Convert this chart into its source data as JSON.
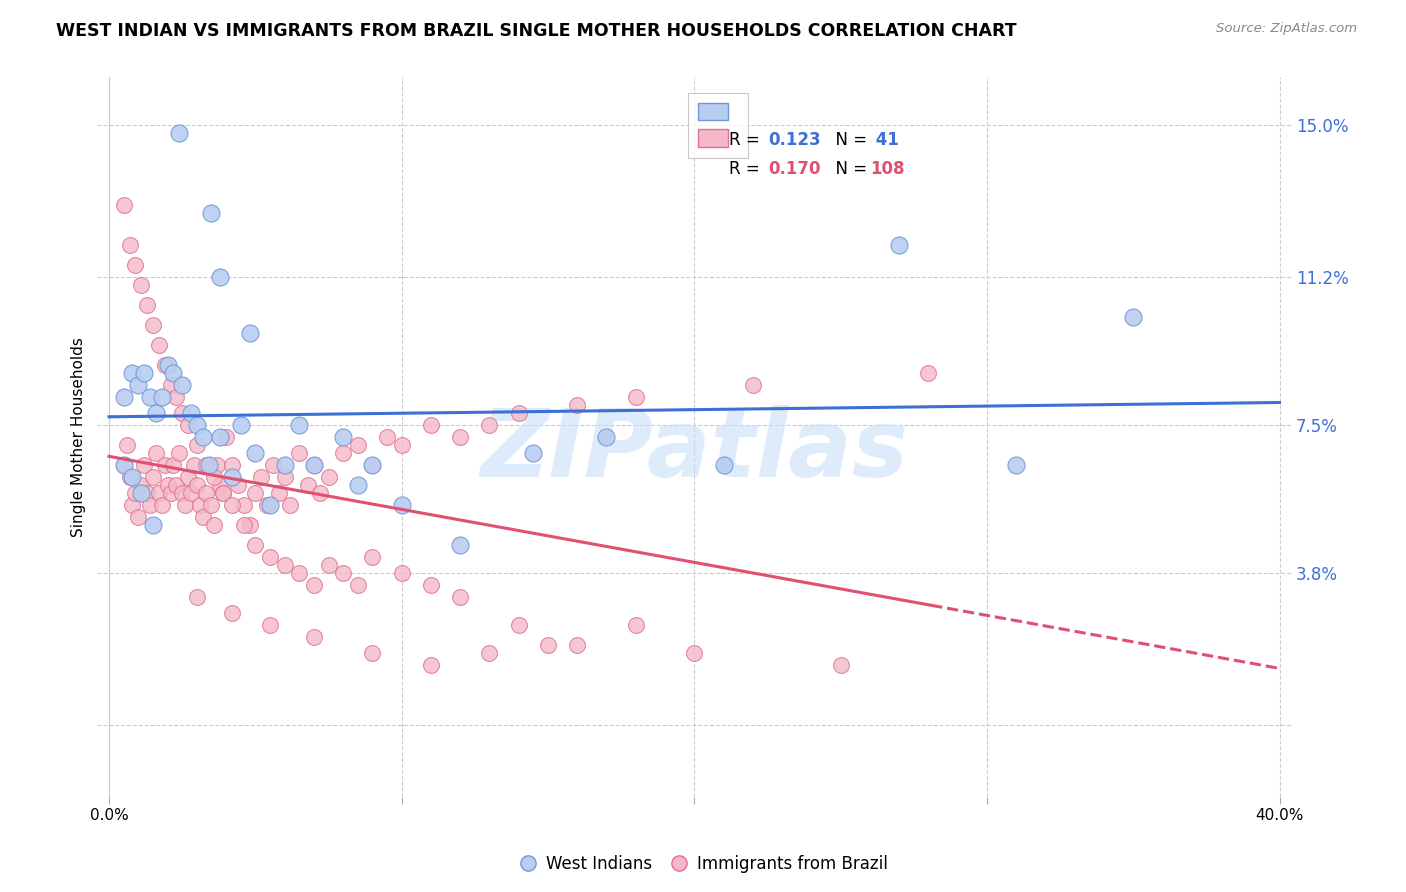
{
  "title": "WEST INDIAN VS IMMIGRANTS FROM BRAZIL SINGLE MOTHER HOUSEHOLDS CORRELATION CHART",
  "source": "Source: ZipAtlas.com",
  "ylabel": "Single Mother Households",
  "ytick_vals": [
    0.0,
    0.038,
    0.075,
    0.112,
    0.15
  ],
  "ytick_labels": [
    "",
    "3.8%",
    "7.5%",
    "11.2%",
    "15.0%"
  ],
  "xtick_vals": [
    0.0,
    0.1,
    0.2,
    0.3,
    0.4
  ],
  "xlim": [
    -0.004,
    0.404
  ],
  "ylim": [
    -0.018,
    0.162
  ],
  "west_indian_R": 0.123,
  "west_indian_N": 41,
  "brazil_R": 0.17,
  "brazil_N": 108,
  "line_color_blue": "#3d6fd4",
  "line_color_pink": "#e05070",
  "dot_color_blue": "#b8cef0",
  "dot_color_pink": "#f5b8c8",
  "dot_edge_blue": "#7098d8",
  "dot_edge_pink": "#e07090",
  "watermark_text": "ZIPatlas",
  "watermark_color": "#c8dff8",
  "grid_color": "#cccccc",
  "legend_text_color_blue": "#3d6fd4",
  "legend_text_color_pink": "#e05070",
  "ytick_color": "#3d6fd4",
  "west_indian_x": [
    0.024,
    0.035,
    0.038,
    0.048,
    0.005,
    0.008,
    0.01,
    0.012,
    0.014,
    0.016,
    0.018,
    0.02,
    0.022,
    0.025,
    0.028,
    0.03,
    0.032,
    0.034,
    0.038,
    0.042,
    0.045,
    0.05,
    0.055,
    0.06,
    0.065,
    0.07,
    0.08,
    0.085,
    0.09,
    0.1,
    0.12,
    0.145,
    0.17,
    0.21,
    0.27,
    0.31,
    0.35,
    0.005,
    0.008,
    0.011,
    0.015
  ],
  "west_indian_y": [
    0.148,
    0.128,
    0.112,
    0.098,
    0.082,
    0.088,
    0.085,
    0.088,
    0.082,
    0.078,
    0.082,
    0.09,
    0.088,
    0.085,
    0.078,
    0.075,
    0.072,
    0.065,
    0.072,
    0.062,
    0.075,
    0.068,
    0.055,
    0.065,
    0.075,
    0.065,
    0.072,
    0.06,
    0.065,
    0.055,
    0.045,
    0.068,
    0.072,
    0.065,
    0.12,
    0.065,
    0.102,
    0.065,
    0.062,
    0.058,
    0.05
  ],
  "brazil_x": [
    0.005,
    0.006,
    0.007,
    0.008,
    0.009,
    0.01,
    0.011,
    0.012,
    0.013,
    0.014,
    0.015,
    0.016,
    0.017,
    0.018,
    0.019,
    0.02,
    0.021,
    0.022,
    0.023,
    0.024,
    0.025,
    0.026,
    0.027,
    0.028,
    0.029,
    0.03,
    0.031,
    0.032,
    0.033,
    0.034,
    0.035,
    0.036,
    0.037,
    0.038,
    0.039,
    0.04,
    0.042,
    0.044,
    0.046,
    0.048,
    0.05,
    0.052,
    0.054,
    0.056,
    0.058,
    0.06,
    0.062,
    0.065,
    0.068,
    0.07,
    0.072,
    0.075,
    0.08,
    0.085,
    0.09,
    0.095,
    0.1,
    0.11,
    0.12,
    0.13,
    0.14,
    0.16,
    0.18,
    0.22,
    0.28,
    0.005,
    0.007,
    0.009,
    0.011,
    0.013,
    0.015,
    0.017,
    0.019,
    0.021,
    0.023,
    0.025,
    0.027,
    0.03,
    0.033,
    0.036,
    0.039,
    0.042,
    0.046,
    0.05,
    0.055,
    0.06,
    0.065,
    0.07,
    0.075,
    0.08,
    0.085,
    0.09,
    0.1,
    0.11,
    0.12,
    0.14,
    0.16,
    0.2,
    0.25,
    0.18,
    0.15,
    0.13,
    0.11,
    0.09,
    0.07,
    0.055,
    0.042,
    0.03
  ],
  "brazil_y": [
    0.065,
    0.07,
    0.062,
    0.055,
    0.058,
    0.052,
    0.06,
    0.065,
    0.058,
    0.055,
    0.062,
    0.068,
    0.058,
    0.055,
    0.065,
    0.06,
    0.058,
    0.065,
    0.06,
    0.068,
    0.058,
    0.055,
    0.062,
    0.058,
    0.065,
    0.06,
    0.055,
    0.052,
    0.058,
    0.065,
    0.055,
    0.05,
    0.065,
    0.06,
    0.058,
    0.072,
    0.065,
    0.06,
    0.055,
    0.05,
    0.058,
    0.062,
    0.055,
    0.065,
    0.058,
    0.062,
    0.055,
    0.068,
    0.06,
    0.065,
    0.058,
    0.062,
    0.068,
    0.07,
    0.065,
    0.072,
    0.07,
    0.075,
    0.072,
    0.075,
    0.078,
    0.08,
    0.082,
    0.085,
    0.088,
    0.13,
    0.12,
    0.115,
    0.11,
    0.105,
    0.1,
    0.095,
    0.09,
    0.085,
    0.082,
    0.078,
    0.075,
    0.07,
    0.065,
    0.062,
    0.058,
    0.055,
    0.05,
    0.045,
    0.042,
    0.04,
    0.038,
    0.035,
    0.04,
    0.038,
    0.035,
    0.042,
    0.038,
    0.035,
    0.032,
    0.025,
    0.02,
    0.018,
    0.015,
    0.025,
    0.02,
    0.018,
    0.015,
    0.018,
    0.022,
    0.025,
    0.028,
    0.032
  ],
  "brazil_line_start_x": 0.0,
  "brazil_line_end_x": 0.4,
  "brazil_line_solid_end": 0.28,
  "west_indian_line_start_x": 0.0,
  "west_indian_line_end_x": 0.4
}
